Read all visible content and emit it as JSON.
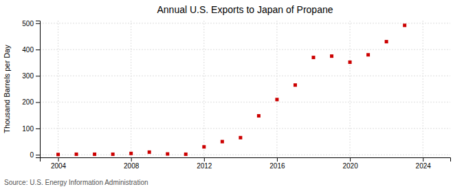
{
  "chart_data": {
    "type": "scatter",
    "title": "Annual U.S. Exports to Japan of Propane",
    "ylabel": "Thousand Barrels per Day",
    "source": "Source: U.S. Energy Information Administration",
    "x": [
      2004,
      2005,
      2006,
      2007,
      2008,
      2009,
      2010,
      2011,
      2012,
      2013,
      2014,
      2015,
      2016,
      2017,
      2018,
      2019,
      2020,
      2021,
      2022,
      2023
    ],
    "values": [
      1,
      2,
      2,
      2,
      5,
      10,
      3,
      2,
      30,
      50,
      65,
      148,
      210,
      265,
      370,
      375,
      352,
      380,
      430,
      492
    ],
    "color": "#cc0000",
    "marker": "square",
    "xlim": [
      2003.0,
      2025.5
    ],
    "ylim": [
      -10,
      510
    ],
    "xticks": [
      2004,
      2008,
      2012,
      2016,
      2020,
      2024
    ],
    "yticks": [
      0,
      100,
      200,
      300,
      400,
      500
    ],
    "grid": true
  }
}
